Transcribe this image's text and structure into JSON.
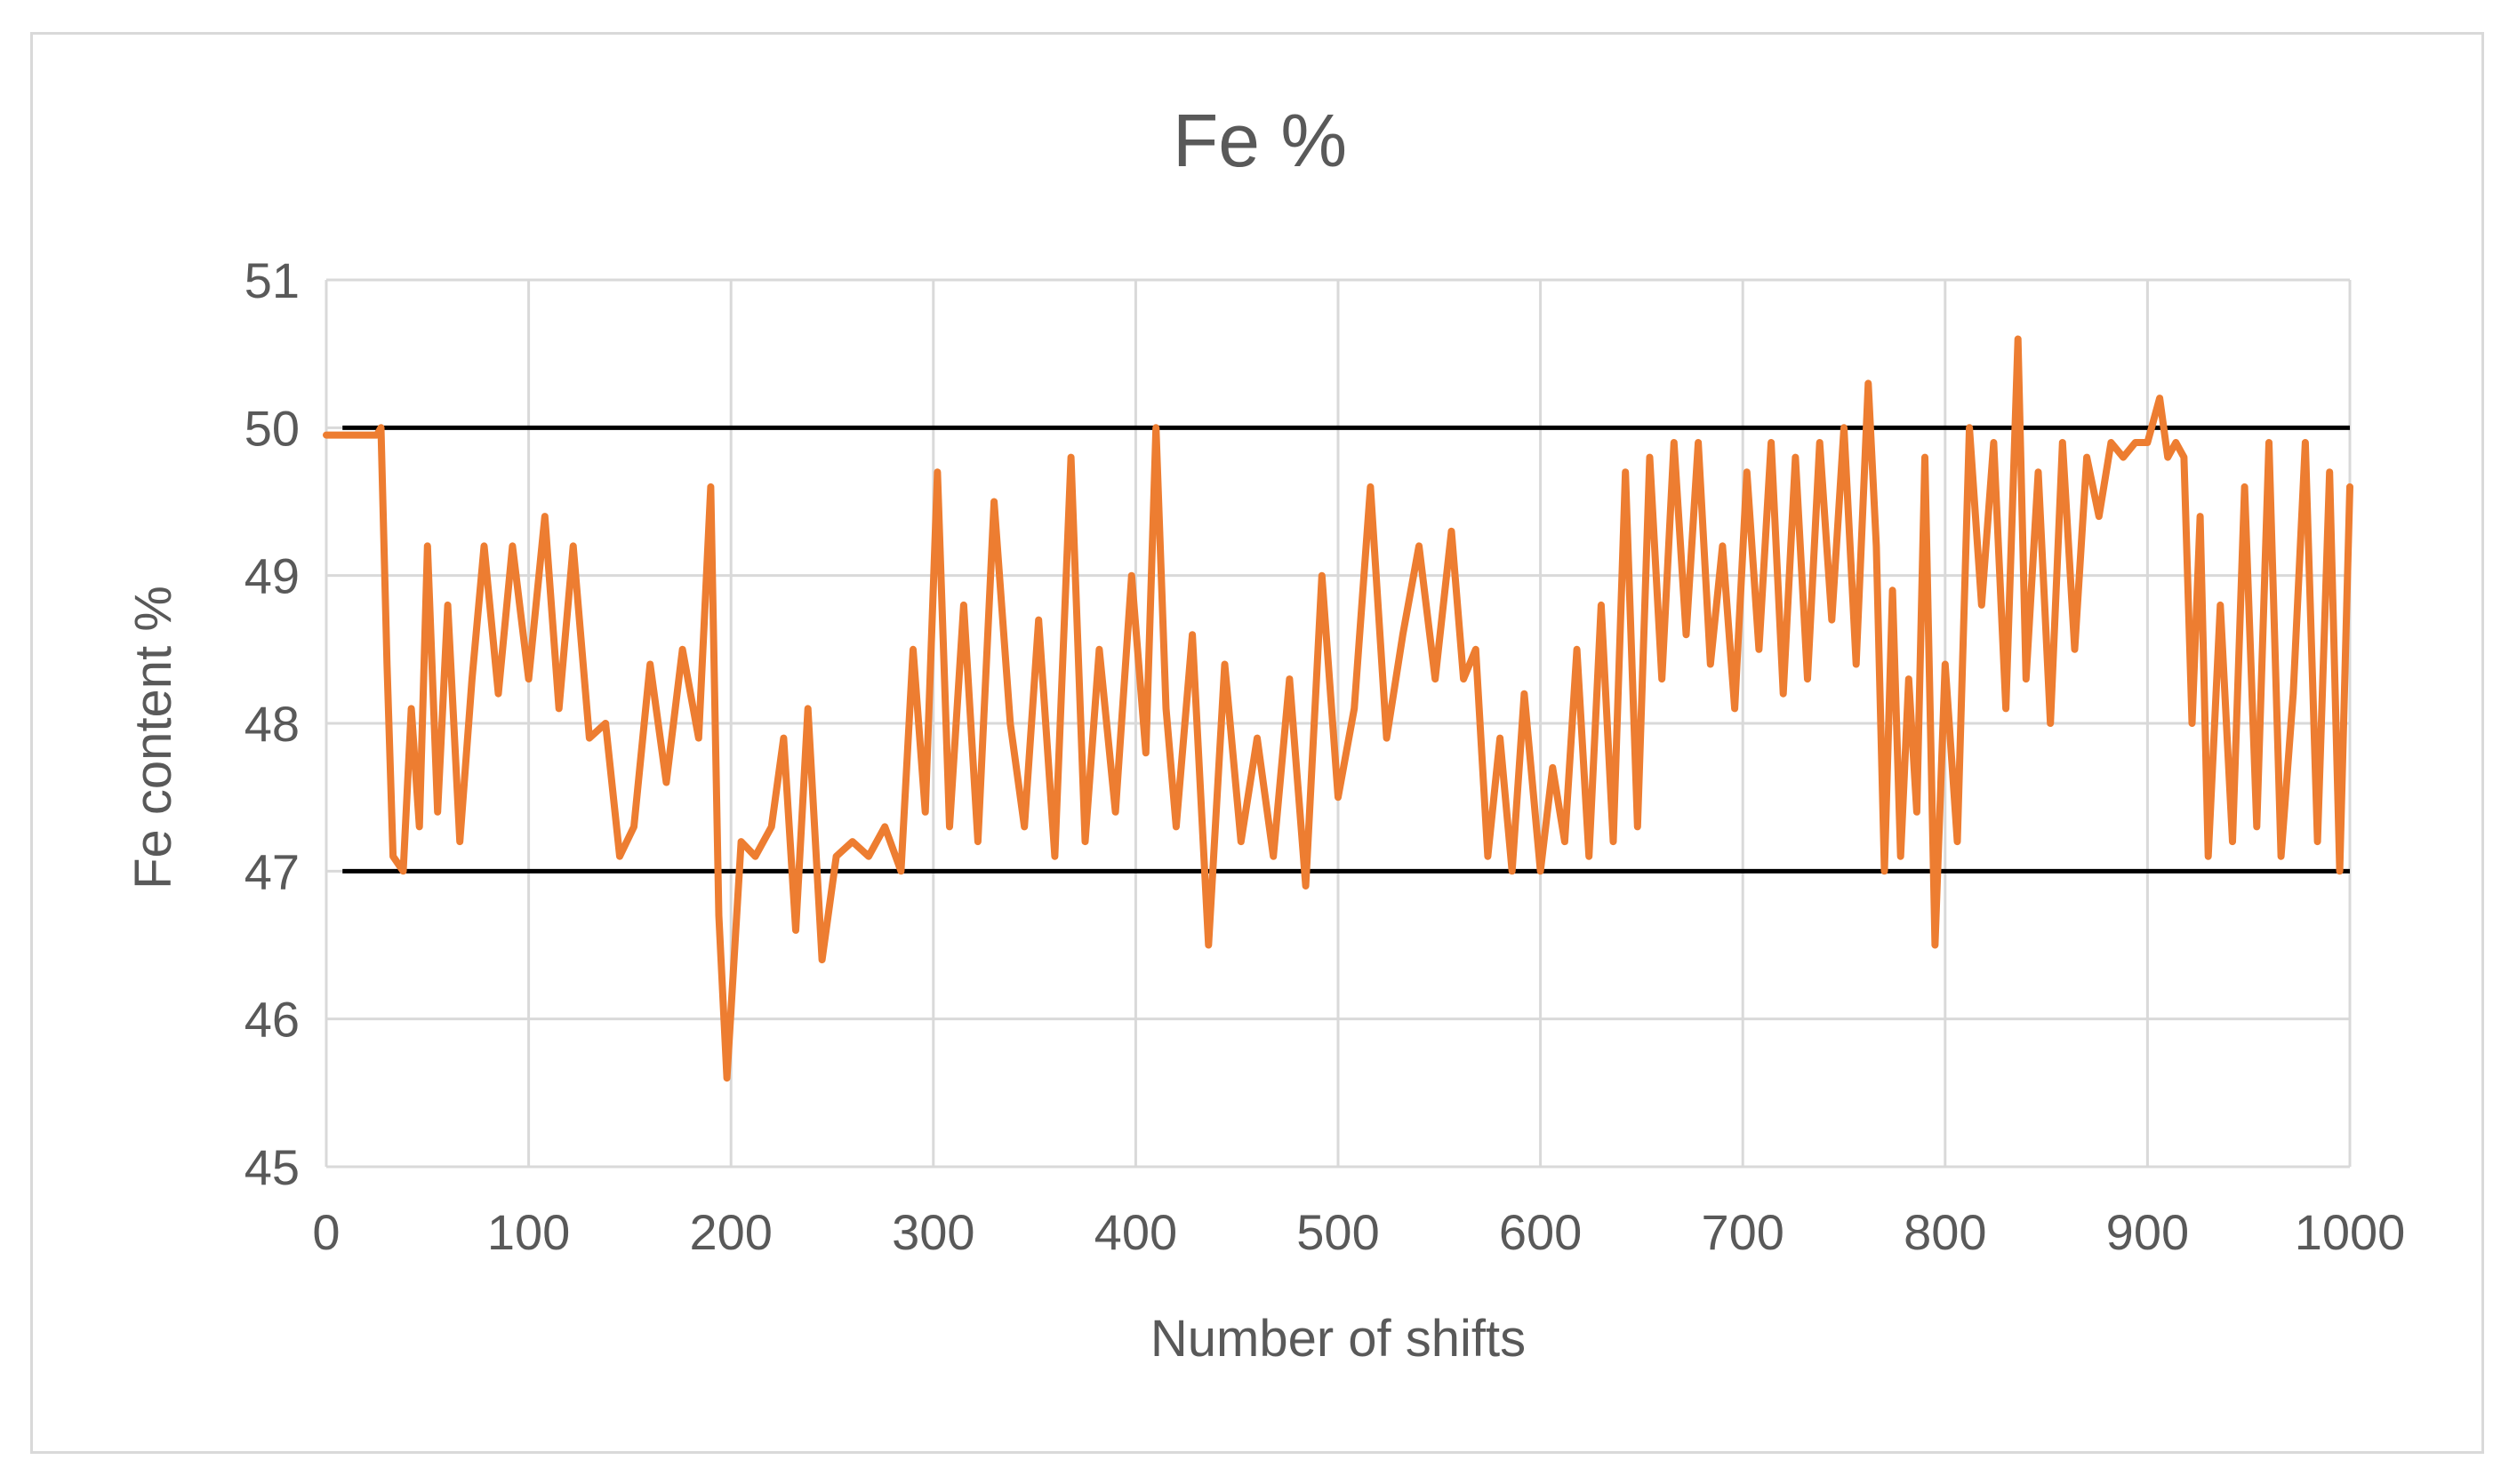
{
  "chart_data": {
    "type": "line",
    "title": "Fe %",
    "xlabel": "Number of shifts",
    "ylabel": "Fe content %",
    "xlim": [
      0,
      1000
    ],
    "ylim": [
      45,
      51
    ],
    "x_ticks": [
      0,
      100,
      200,
      300,
      400,
      500,
      600,
      700,
      800,
      900,
      1000
    ],
    "y_ticks": [
      45,
      46,
      47,
      48,
      49,
      50,
      51
    ],
    "x_tick_labels": [
      "0",
      "100",
      "200",
      "300",
      "400",
      "500",
      "600",
      "700",
      "800",
      "900",
      "1000"
    ],
    "y_tick_labels": [
      "45",
      "46",
      "47",
      "48",
      "49",
      "50",
      "51"
    ],
    "grid": true,
    "legend": "none",
    "colors": {
      "series": "#ed7d31",
      "limits": "#000000",
      "grid": "#d9d9d9",
      "text": "#595959"
    },
    "reference_lines": [
      {
        "y": 50,
        "x_range": [
          8,
          1000
        ]
      },
      {
        "y": 47,
        "x_range": [
          8,
          1000
        ]
      }
    ],
    "series": [
      {
        "x": [
          0,
          25,
          27,
          30,
          33,
          38,
          42,
          46,
          50,
          55,
          60,
          66,
          72,
          78,
          85,
          92,
          100,
          108,
          115,
          122,
          130,
          138,
          145,
          152,
          160,
          168,
          176,
          184,
          190,
          194,
          198,
          205,
          212,
          220,
          226,
          232,
          238,
          245,
          252,
          260,
          268,
          276,
          284,
          290,
          296,
          302,
          308,
          315,
          322,
          330,
          338,
          345,
          352,
          360,
          368,
          375,
          382,
          390,
          398,
          405,
          410,
          415,
          420,
          428,
          436,
          444,
          452,
          460,
          468,
          476,
          484,
          492,
          500,
          508,
          516,
          524,
          532,
          540,
          548,
          556,
          562,
          568,
          574,
          580,
          586,
          592,
          600,
          606,
          612,
          618,
          624,
          630,
          636,
          642,
          648,
          654,
          660,
          666,
          672,
          678,
          684,
          690,
          696,
          702,
          708,
          714,
          720,
          726,
          732,
          738,
          744,
          750,
          756,
          762,
          766,
          770,
          774,
          778,
          782,
          786,
          790,
          795,
          800,
          806,
          812,
          818,
          824,
          830,
          836,
          840,
          846,
          852,
          858,
          864,
          870,
          876,
          882,
          888,
          894,
          900,
          906,
          910,
          914,
          918,
          922,
          926,
          930,
          936,
          942,
          948,
          954,
          960,
          966,
          972,
          978,
          984,
          990,
          995,
          1000
        ],
        "values": [
          49.95,
          49.95,
          50.0,
          48.4,
          47.1,
          47.0,
          48.1,
          47.3,
          49.2,
          47.4,
          48.8,
          47.2,
          48.3,
          49.2,
          48.2,
          49.2,
          48.3,
          49.4,
          48.1,
          49.2,
          47.9,
          48.0,
          47.1,
          47.3,
          48.4,
          47.6,
          48.5,
          47.9,
          49.6,
          46.7,
          45.6,
          47.2,
          47.1,
          47.3,
          47.9,
          46.6,
          48.1,
          46.4,
          47.1,
          47.2,
          47.1,
          47.3,
          47.0,
          48.5,
          47.4,
          49.7,
          47.3,
          48.8,
          47.2,
          49.5,
          48.0,
          47.3,
          48.7,
          47.1,
          49.8,
          47.2,
          48.5,
          47.4,
          49.0,
          47.8,
          50.0,
          48.1,
          47.3,
          48.6,
          46.5,
          48.4,
          47.2,
          47.9,
          47.1,
          48.3,
          46.9,
          49.0,
          47.5,
          48.1,
          49.6,
          47.9,
          48.6,
          49.2,
          48.3,
          49.3,
          48.3,
          48.5,
          47.1,
          47.9,
          47.0,
          48.2,
          47.0,
          47.7,
          47.2,
          48.5,
          47.1,
          48.8,
          47.2,
          49.7,
          47.3,
          49.8,
          48.3,
          49.9,
          48.6,
          49.9,
          48.4,
          49.2,
          48.1,
          49.7,
          48.5,
          49.9,
          48.2,
          49.8,
          48.3,
          49.9,
          48.7,
          50.0,
          48.4,
          50.3,
          49.2,
          47.0,
          48.9,
          47.1,
          48.3,
          47.4,
          49.8,
          46.5,
          48.4,
          47.2,
          50.0,
          48.8,
          49.9,
          48.1,
          50.6,
          48.3,
          49.7,
          48.0,
          49.9,
          48.5,
          49.8,
          49.4,
          49.9,
          49.8,
          49.9,
          49.9,
          50.2,
          49.8,
          49.9,
          49.8,
          48.0,
          49.4,
          47.1,
          48.8,
          47.2,
          49.6,
          47.3,
          49.9,
          47.1,
          48.2,
          49.9,
          47.2,
          49.7,
          47.0,
          49.6
        ]
      }
    ]
  }
}
